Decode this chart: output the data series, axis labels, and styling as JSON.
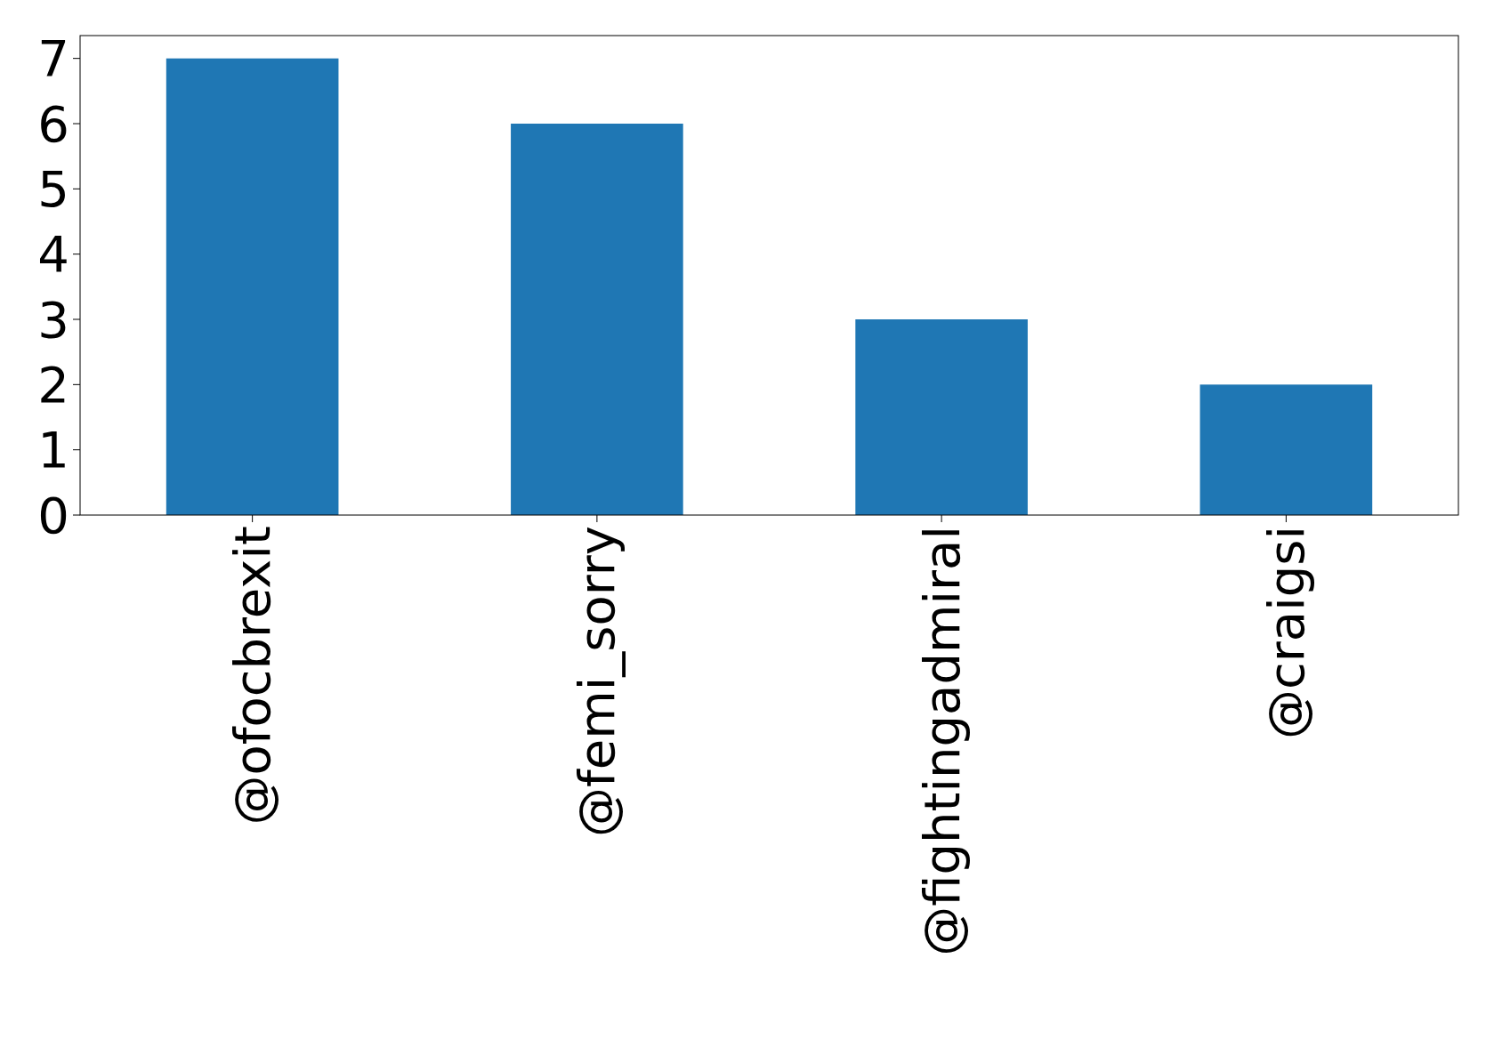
{
  "chart_data": {
    "type": "bar",
    "categories": [
      "@ofocbrexit",
      "@femi_sorry",
      "@fightingadmiral",
      "@craigsi"
    ],
    "values": [
      7,
      6,
      3,
      2
    ],
    "color": "#1f77b4",
    "ylim": [
      0,
      7.35
    ],
    "yticks": [
      0,
      1,
      2,
      3,
      4,
      5,
      6,
      7
    ],
    "grid": false
  }
}
